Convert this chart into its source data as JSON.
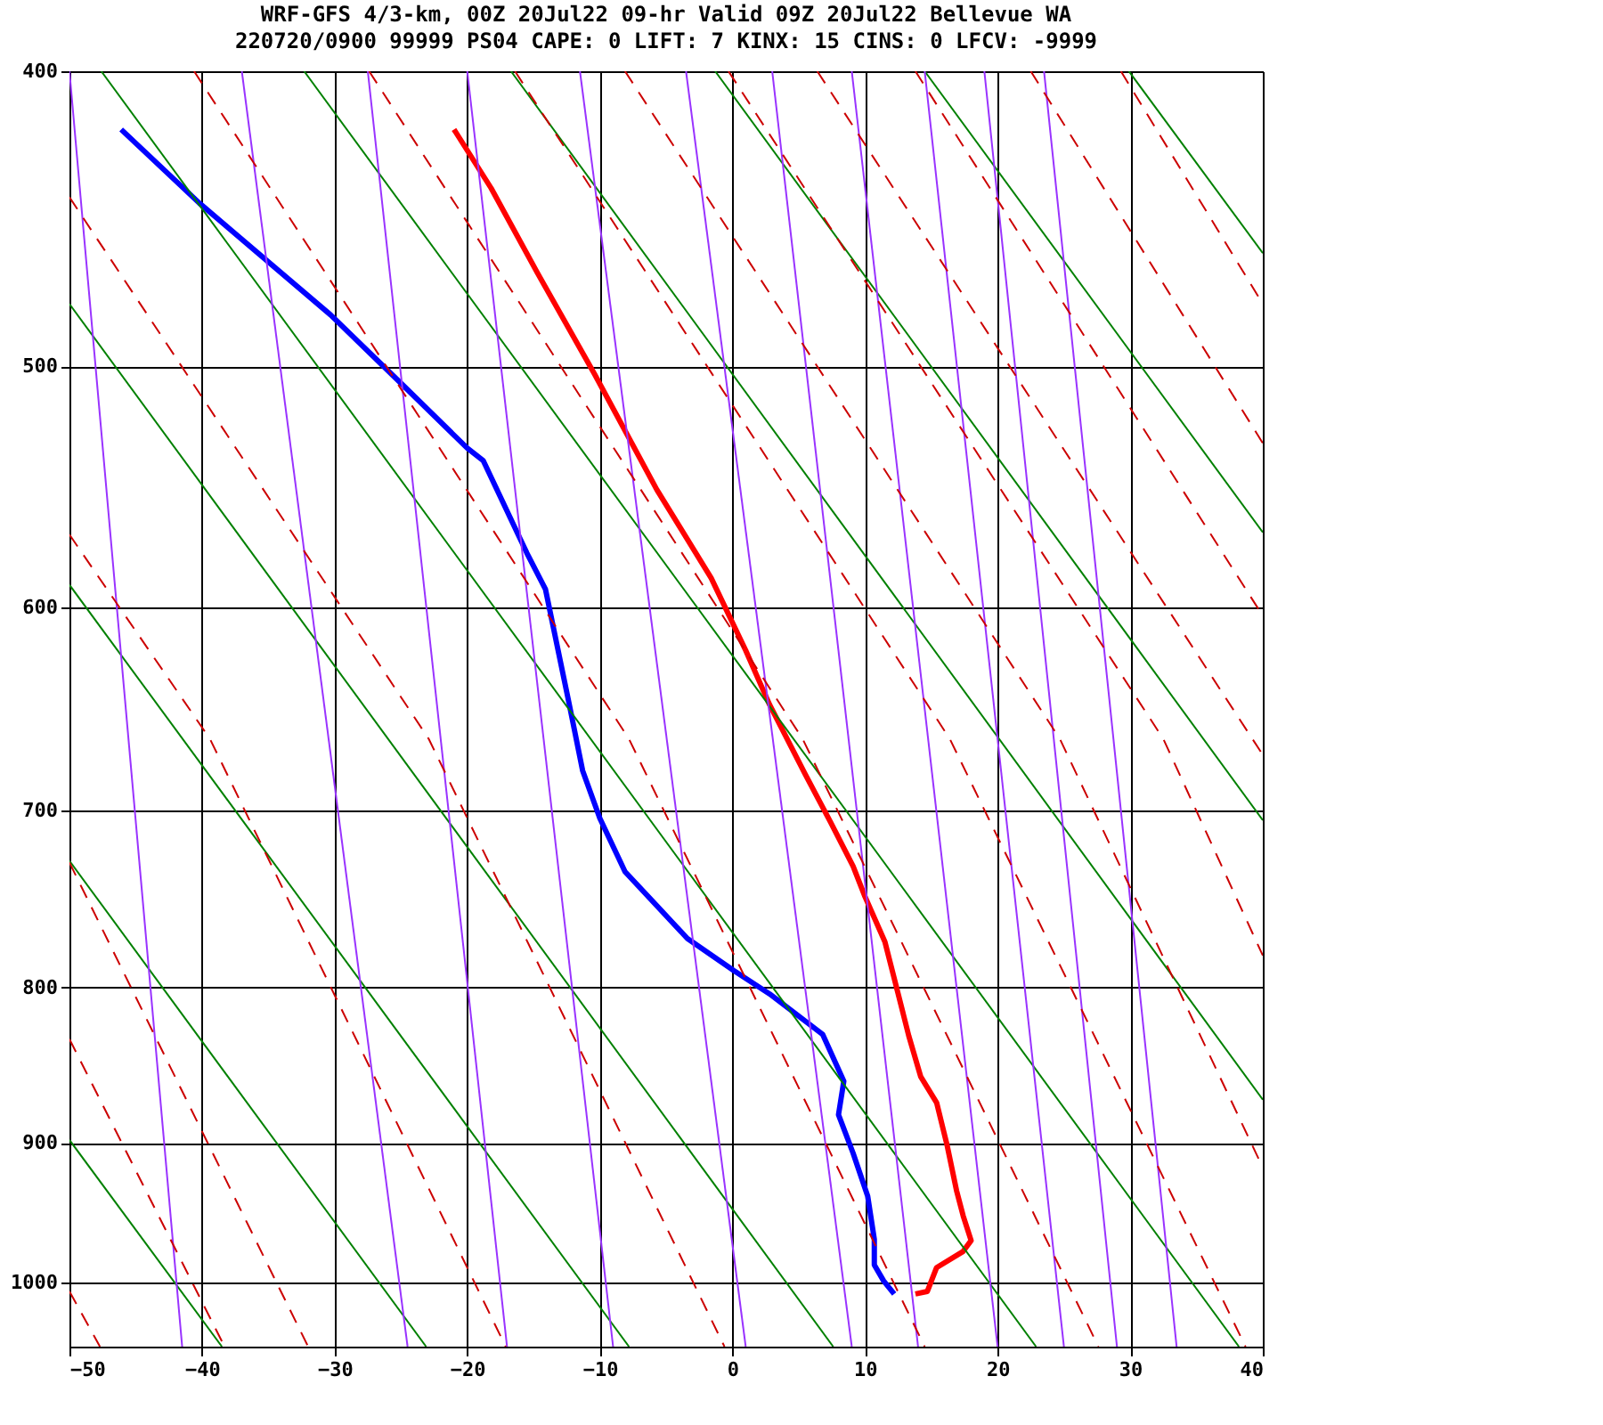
{
  "chart_data": {
    "type": "line",
    "title": "WRF-GFS 4/3-km, 00Z 20Jul22 09-hr Valid 09Z 20Jul22 Bellevue WA",
    "subtitle": "220720/0900 99999  PS04    CAPE:     0 LIFT:     7 KINX:    15 CINS:     0 LFCV: -9999",
    "xlim": [
      -50,
      40
    ],
    "xticks": [
      -50,
      -40,
      -30,
      -20,
      -10,
      0,
      10,
      20,
      30,
      40
    ],
    "ylim": [
      1050,
      400
    ],
    "yticks": [
      400,
      500,
      600,
      700,
      800,
      900,
      1000
    ],
    "log": "y",
    "grid": true,
    "legend": false,
    "marker": "none",
    "series": [
      {
        "color": "#ff0000",
        "line_style": "solid",
        "x": [
          -21.0,
          -18.2,
          -14.7,
          -10.4,
          -5.7,
          -1.6,
          1.0,
          2.8,
          5.5,
          7.4,
          9.1,
          10.0,
          11.5,
          12.5,
          13.3,
          14.2,
          15.4,
          16.2,
          16.9,
          17.4,
          18.0,
          17.4,
          15.4,
          14.7,
          13.8
        ],
        "values": [
          418,
          437,
          466,
          503,
          549,
          587,
          620,
          646,
          681,
          706,
          730,
          747,
          773,
          804,
          830,
          856,
          873,
          902,
          933,
          951,
          969,
          977,
          989,
          1007,
          1009
        ]
      },
      {
        "color": "#0000ff",
        "line_style": "solid",
        "x": [
          -46.1,
          -40.2,
          -30.3,
          -24.9,
          -20.0,
          -18.8,
          -15.5,
          -14.1,
          -12.3,
          -11.3,
          -10.0,
          -8.1,
          -3.4,
          0.1,
          2.8,
          6.8,
          8.4,
          8.0,
          9.1,
          10.2,
          10.7,
          10.7,
          11.4,
          12.2
        ],
        "values": [
          418,
          442,
          481,
          507,
          532,
          537,
          576,
          592,
          646,
          679,
          704,
          733,
          771,
          790,
          804,
          829,
          859,
          881,
          907,
          937,
          968,
          987,
          999,
          1009
        ]
      },
      {
        "color": "#008000",
        "line_style": "solid",
        "x": [
          29.9,
          40
        ],
        "values": [
          400,
          459
        ]
      },
      {
        "color": "#008000",
        "line_style": "solid",
        "x": [
          14.5,
          40
        ],
        "values": [
          400,
          567
        ]
      },
      {
        "color": "#008000",
        "line_style": "solid",
        "x": [
          -1.3,
          40
        ],
        "values": [
          400,
          705
        ]
      },
      {
        "color": "#008000",
        "line_style": "solid",
        "x": [
          -16.7,
          40
        ],
        "values": [
          400,
          871
        ]
      },
      {
        "color": "#008000",
        "line_style": "solid",
        "x": [
          -32.3,
          38.2
        ],
        "values": [
          400,
          1050
        ]
      },
      {
        "color": "#008000",
        "line_style": "solid",
        "x": [
          -47.6,
          22.9
        ],
        "values": [
          400,
          1050
        ]
      },
      {
        "color": "#008000",
        "line_style": "solid",
        "x": [
          -50,
          7.6
        ],
        "values": [
          477,
          1050
        ]
      },
      {
        "color": "#008000",
        "line_style": "solid",
        "x": [
          -50,
          -7.8
        ],
        "values": [
          590,
          1050
        ]
      },
      {
        "color": "#008000",
        "line_style": "solid",
        "x": [
          -50,
          -23.1
        ],
        "values": [
          727,
          1050
        ]
      },
      {
        "color": "#008000",
        "line_style": "solid",
        "x": [
          -50,
          -38.5
        ],
        "values": [
          898,
          1050
        ]
      },
      {
        "color": "#9933ff",
        "line_style": "solid",
        "x": [
          -50,
          -41.5
        ],
        "values": [
          400,
          1050
        ]
      },
      {
        "color": "#9933ff",
        "line_style": "solid",
        "x": [
          -37,
          -24.5
        ],
        "values": [
          400,
          1050
        ]
      },
      {
        "color": "#9933ff",
        "line_style": "solid",
        "x": [
          -27.5,
          -17
        ],
        "values": [
          400,
          1050
        ]
      },
      {
        "color": "#9933ff",
        "line_style": "solid",
        "x": [
          -20,
          -9
        ],
        "values": [
          400,
          1050
        ]
      },
      {
        "color": "#9933ff",
        "line_style": "solid",
        "x": [
          -11.5,
          1
        ],
        "values": [
          400,
          1050
        ]
      },
      {
        "color": "#9933ff",
        "line_style": "solid",
        "x": [
          -3.5,
          9
        ],
        "values": [
          400,
          1050
        ]
      },
      {
        "color": "#9933ff",
        "line_style": "solid",
        "x": [
          3,
          14
        ],
        "values": [
          400,
          1050
        ]
      },
      {
        "color": "#9933ff",
        "line_style": "solid",
        "x": [
          9,
          20
        ],
        "values": [
          400,
          1050
        ]
      },
      {
        "color": "#9933ff",
        "line_style": "solid",
        "x": [
          14.5,
          25
        ],
        "values": [
          400,
          1050
        ]
      },
      {
        "color": "#9933ff",
        "line_style": "solid",
        "x": [
          19,
          29
        ],
        "values": [
          400,
          1050
        ]
      },
      {
        "color": "#9933ff",
        "line_style": "solid",
        "x": [
          23.5,
          33.5
        ],
        "values": [
          400,
          1050
        ]
      },
      {
        "color": "#cc0000",
        "line_style": "dashed",
        "x": [
          -40.6,
          -7.8,
          14.5
        ],
        "values": [
          400,
          663,
          1050
        ]
      },
      {
        "color": "#cc0000",
        "line_style": "dashed",
        "x": [
          -27.4,
          5.3,
          27.6
        ],
        "values": [
          400,
          663,
          1050
        ]
      },
      {
        "color": "#cc0000",
        "line_style": "dashed",
        "x": [
          -16.4,
          16.4,
          38.7
        ],
        "values": [
          400,
          663,
          1050
        ]
      },
      {
        "color": "#cc0000",
        "line_style": "dashed",
        "x": [
          -8.1,
          24.7,
          40
        ],
        "values": [
          400,
          663,
          917
        ]
      },
      {
        "color": "#cc0000",
        "line_style": "dashed",
        "x": [
          -0.3,
          32.5,
          40
        ],
        "values": [
          400,
          663,
          781
        ]
      },
      {
        "color": "#cc0000",
        "line_style": "dashed",
        "x": [
          6.4,
          40
        ],
        "values": [
          400,
          671
        ]
      },
      {
        "color": "#cc0000",
        "line_style": "dashed",
        "x": [
          13.8,
          40
        ],
        "values": [
          400,
          604
        ]
      },
      {
        "color": "#cc0000",
        "line_style": "dashed",
        "x": [
          22.5,
          40
        ],
        "values": [
          400,
          530
        ]
      },
      {
        "color": "#cc0000",
        "line_style": "dashed",
        "x": [
          29.3,
          40
        ],
        "values": [
          400,
          477
        ]
      },
      {
        "color": "#cc0000",
        "line_style": "dashed",
        "x": [
          -50,
          -22.9,
          -0.6
        ],
        "values": [
          440,
          663,
          1050
        ]
      },
      {
        "color": "#cc0000",
        "line_style": "dashed",
        "x": [
          -50,
          -39.4,
          -17.1
        ],
        "values": [
          568,
          663,
          1050
        ]
      },
      {
        "color": "#cc0000",
        "line_style": "dashed",
        "x": [
          -50,
          -32.0
        ],
        "values": [
          728,
          1050
        ]
      },
      {
        "color": "#cc0000",
        "line_style": "dashed",
        "x": [
          -50,
          -38.3
        ],
        "values": [
          832,
          1050
        ]
      },
      {
        "color": "#cc0000",
        "line_style": "dashed",
        "x": [
          -50,
          -47.7
        ],
        "values": [
          1007,
          1050
        ]
      }
    ]
  }
}
